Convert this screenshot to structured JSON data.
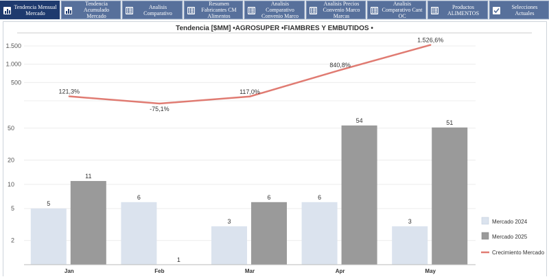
{
  "tabs": [
    {
      "label": "Tendencia Mensual Mercado",
      "icon": "bar-chart-icon",
      "active": true
    },
    {
      "label": "Tendencia Acumulado Mercado",
      "icon": "bar-chart-icon",
      "active": false
    },
    {
      "label": "Analisis Comparativo",
      "icon": "table-icon",
      "active": false
    },
    {
      "label": "Resumen Fabricantes CM Alimentos",
      "icon": "table-icon",
      "active": false
    },
    {
      "label": "Analisis Comparativo Convenio Marco",
      "icon": "table-icon",
      "active": false
    },
    {
      "label": "Analisis Precios Convenio Marco Marcas",
      "icon": "table-icon",
      "active": false
    },
    {
      "label": "Analisis Comparativo Cant OC",
      "icon": "table-icon",
      "active": false
    },
    {
      "label": "Productos ALIMENTOS",
      "icon": "table-icon",
      "active": false
    },
    {
      "label": "Selecciones Actuales",
      "icon": "checkbox-icon",
      "active": false
    }
  ],
  "chart_data": {
    "type": "bar",
    "title": "Tendencia [$MM]  •AGROSUPER  •FIAMBRES Y EMBUTIDOS  •",
    "categories": [
      "Jan",
      "Feb",
      "Mar",
      "Apr",
      "May"
    ],
    "series": [
      {
        "name": "Mercado 2024",
        "type": "bar",
        "color": "#dbe3ee",
        "values": [
          5,
          6,
          3,
          6,
          3
        ],
        "labels": [
          "5",
          "6",
          "3",
          "6",
          "3"
        ]
      },
      {
        "name": "Mercado 2025",
        "type": "bar",
        "color": "#9a9a9a",
        "values": [
          11,
          1,
          6,
          54,
          51
        ],
        "labels": [
          "11",
          "1",
          "6",
          "54",
          "51"
        ]
      },
      {
        "name": "Crecimiento Mercado",
        "type": "line",
        "color": "#e07b72",
        "values": [
          121.3,
          -75.1,
          117.0,
          840.8,
          1526.6
        ],
        "labels": [
          "121,3%",
          "-75,1%",
          "117,0%",
          "840,8%",
          "1.526,6%"
        ]
      }
    ],
    "bar_axis": {
      "scale": "log",
      "ticks": [
        2,
        5,
        10,
        20,
        50
      ],
      "tick_labels": [
        "2",
        "5",
        "10",
        "20",
        "50"
      ],
      "range": [
        1,
        80
      ]
    },
    "line_axis": {
      "scale": "linear",
      "ticks": [
        0,
        500,
        1000,
        1500
      ],
      "tick_labels": [
        "",
        "500",
        "1.000",
        "1.500"
      ],
      "range": [
        -200,
        1650
      ]
    },
    "grid": "horizontal",
    "legend": "right"
  }
}
